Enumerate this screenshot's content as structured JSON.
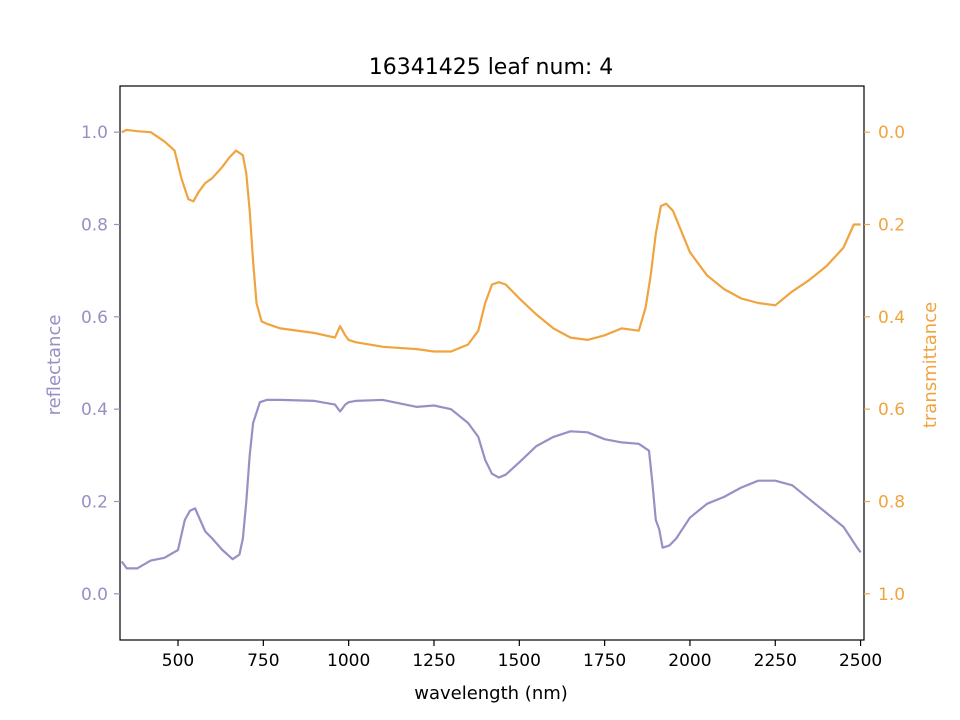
{
  "chart_data": {
    "type": "line",
    "title": "16341425 leaf num: 4",
    "xlabel": "wavelength (nm)",
    "ylabel_left": "reflectance",
    "ylabel_right": "transmittance",
    "xlim": [
      330,
      2510
    ],
    "ylim_left": [
      -0.1,
      1.1
    ],
    "ylim_right": [
      1.1,
      -0.1
    ],
    "x_ticks": [
      500,
      750,
      1000,
      1250,
      1500,
      1750,
      2000,
      2250,
      2500
    ],
    "x_tick_labels": [
      "500",
      "750",
      "1000",
      "1250",
      "1500",
      "1750",
      "2000",
      "2250",
      "2500"
    ],
    "y_left_ticks": [
      0.0,
      0.2,
      0.4,
      0.6,
      0.8,
      1.0
    ],
    "y_left_tick_labels": [
      "0.0",
      "0.2",
      "0.4",
      "0.6",
      "0.8",
      "1.0"
    ],
    "y_right_ticks": [
      0.0,
      0.2,
      0.4,
      0.6,
      0.8,
      1.0
    ],
    "y_right_tick_labels": [
      "0.0",
      "0.2",
      "0.4",
      "0.6",
      "0.8",
      "1.0"
    ],
    "grid": false,
    "legend": "none",
    "colors": {
      "reflectance": "#9890c4",
      "transmittance": "#f0a440",
      "axis": "#000000"
    },
    "series": [
      {
        "axis": "left",
        "color": "#9890c4",
        "x": [
          335,
          350,
          380,
          420,
          460,
          500,
          520,
          535,
          550,
          565,
          580,
          600,
          630,
          660,
          680,
          690,
          700,
          710,
          720,
          740,
          760,
          800,
          900,
          960,
          975,
          990,
          1000,
          1020,
          1100,
          1200,
          1250,
          1300,
          1350,
          1380,
          1400,
          1420,
          1440,
          1460,
          1500,
          1550,
          1600,
          1650,
          1700,
          1750,
          1800,
          1850,
          1880,
          1890,
          1900,
          1910,
          1920,
          1940,
          1960,
          2000,
          2050,
          2100,
          2150,
          2200,
          2250,
          2300,
          2350,
          2400,
          2450,
          2490,
          2500
        ],
        "y": [
          0.07,
          0.055,
          0.055,
          0.072,
          0.078,
          0.095,
          0.16,
          0.18,
          0.185,
          0.16,
          0.135,
          0.12,
          0.095,
          0.075,
          0.085,
          0.12,
          0.2,
          0.3,
          0.37,
          0.415,
          0.42,
          0.42,
          0.418,
          0.41,
          0.395,
          0.41,
          0.415,
          0.418,
          0.42,
          0.405,
          0.408,
          0.4,
          0.37,
          0.34,
          0.29,
          0.26,
          0.252,
          0.258,
          0.285,
          0.32,
          0.34,
          0.352,
          0.35,
          0.335,
          0.328,
          0.325,
          0.31,
          0.24,
          0.16,
          0.14,
          0.1,
          0.105,
          0.12,
          0.165,
          0.195,
          0.21,
          0.23,
          0.245,
          0.245,
          0.235,
          0.205,
          0.175,
          0.145,
          0.1,
          0.09
        ]
      },
      {
        "axis": "right",
        "color": "#f0a440",
        "x": [
          335,
          350,
          380,
          420,
          460,
          490,
          510,
          530,
          545,
          560,
          580,
          600,
          630,
          650,
          670,
          680,
          690,
          700,
          710,
          720,
          730,
          745,
          760,
          800,
          900,
          960,
          975,
          990,
          1000,
          1020,
          1100,
          1200,
          1250,
          1300,
          1350,
          1380,
          1400,
          1420,
          1440,
          1460,
          1500,
          1550,
          1600,
          1650,
          1700,
          1750,
          1800,
          1850,
          1870,
          1885,
          1900,
          1915,
          1930,
          1950,
          2000,
          2050,
          2100,
          2150,
          2200,
          2250,
          2300,
          2350,
          2400,
          2450,
          2480,
          2500
        ],
        "y": [
          0.0,
          -0.005,
          -0.002,
          0.0,
          0.02,
          0.04,
          0.1,
          0.145,
          0.15,
          0.13,
          0.11,
          0.1,
          0.075,
          0.055,
          0.04,
          0.045,
          0.05,
          0.09,
          0.17,
          0.28,
          0.37,
          0.41,
          0.415,
          0.425,
          0.435,
          0.445,
          0.42,
          0.44,
          0.45,
          0.455,
          0.465,
          0.47,
          0.475,
          0.475,
          0.46,
          0.43,
          0.37,
          0.33,
          0.325,
          0.33,
          0.36,
          0.395,
          0.425,
          0.445,
          0.45,
          0.44,
          0.425,
          0.43,
          0.38,
          0.31,
          0.22,
          0.16,
          0.155,
          0.17,
          0.26,
          0.31,
          0.34,
          0.36,
          0.37,
          0.375,
          0.345,
          0.32,
          0.29,
          0.25,
          0.2,
          0.2
        ]
      }
    ]
  }
}
